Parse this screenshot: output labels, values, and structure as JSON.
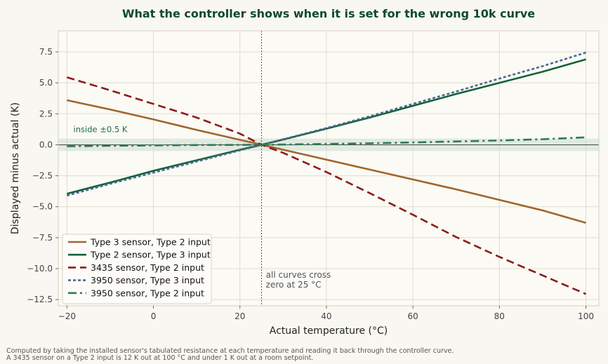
{
  "chart_data": {
    "type": "line",
    "title": "What the controller shows when it is set for the wrong 10k curve",
    "xlabel": "Actual temperature (°C)",
    "ylabel": "Displayed minus actual (K)",
    "xlim": [
      -22,
      103
    ],
    "ylim": [
      -13,
      9.2
    ],
    "xticks": [
      -20,
      0,
      20,
      40,
      60,
      80,
      100
    ],
    "xtick_labels": [
      "−20",
      "0",
      "20",
      "40",
      "60",
      "80",
      "100"
    ],
    "yticks": [
      -12.5,
      -10,
      -7.5,
      -5,
      -2.5,
      0,
      2.5,
      5,
      7.5
    ],
    "ytick_labels": [
      "−12.5",
      "−10.0",
      "−7.5",
      "−5.0",
      "−2.5",
      "0.0",
      "2.5",
      "5.0",
      "7.5"
    ],
    "grid": true,
    "legend_position": "bottom-left",
    "x": [
      -20,
      -10,
      0,
      10,
      20,
      25,
      30,
      40,
      50,
      60,
      70,
      80,
      90,
      100
    ],
    "series": [
      {
        "name": "Type 3 sensor, Type 2 input",
        "color": "#a0652e",
        "dash": "solid",
        "values": [
          3.6,
          2.85,
          2.05,
          1.2,
          0.4,
          0.0,
          -0.4,
          -1.2,
          -2.0,
          -2.8,
          -3.6,
          -4.45,
          -5.3,
          -6.3
        ]
      },
      {
        "name": "Type 2 sensor, Type 3 input",
        "color": "#15613a",
        "dash": "solid",
        "values": [
          -3.95,
          -3.05,
          -2.1,
          -1.25,
          -0.4,
          0.0,
          0.42,
          1.3,
          2.2,
          3.15,
          4.1,
          5.0,
          5.9,
          6.9
        ]
      },
      {
        "name": "3435 sensor, Type 2 input",
        "color": "#8a1c1c",
        "dash": "dashed",
        "values": [
          5.45,
          4.4,
          3.3,
          2.2,
          0.9,
          0.0,
          -0.65,
          -2.2,
          -3.9,
          -5.65,
          -7.45,
          -9.05,
          -10.55,
          -12.05
        ]
      },
      {
        "name": "3950 sensor, Type 3 input",
        "color": "#4a6a8e",
        "dash": "dotted",
        "values": [
          -4.1,
          -3.15,
          -2.25,
          -1.35,
          -0.45,
          0.0,
          0.45,
          1.35,
          2.3,
          3.3,
          4.3,
          5.35,
          6.35,
          7.45
        ]
      },
      {
        "name": "3950 sensor, Type 2 input",
        "color": "#2e7a55",
        "dash": "dashdot",
        "values": [
          -0.12,
          -0.08,
          -0.05,
          -0.02,
          -0.01,
          0.0,
          0.02,
          0.07,
          0.12,
          0.19,
          0.27,
          0.35,
          0.45,
          0.6
        ]
      }
    ],
    "band": {
      "from": -0.5,
      "to": 0.5,
      "label": "inside ±0.5 K",
      "color": "#bfd8c8"
    },
    "vline": {
      "x": 25
    },
    "annotation": {
      "x": 26,
      "y": -10.5,
      "lines": [
        "all curves cross",
        "zero at 25 °C"
      ]
    }
  },
  "footnotes": {
    "line1": "Computed by taking the installed sensor's tabulated resistance at each temperature and reading it back through the controller curve.",
    "line2": "A 3435 sensor on a Type 2 input is 12 K out at 100 °C and under 1 K out at a room setpoint."
  }
}
